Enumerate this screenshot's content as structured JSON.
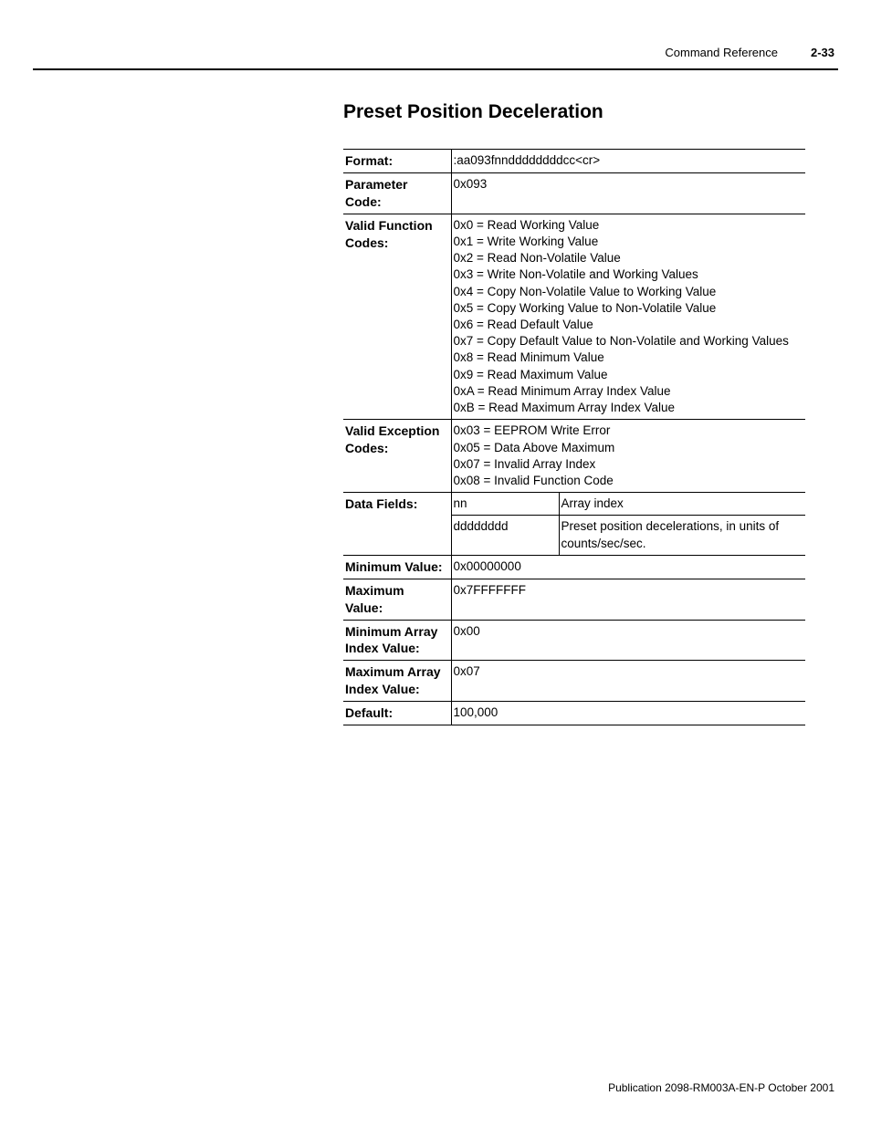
{
  "header": {
    "section": "Command Reference",
    "pagenum": "2-33"
  },
  "title": "Preset Position Deceleration",
  "rows": {
    "format": {
      "label": "Format:",
      "value": ":aa093fnnddddddddcc<cr>"
    },
    "param_code": {
      "label": "Parameter Code:",
      "value": "0x093"
    },
    "func_codes": {
      "label": "Valid Function Codes:",
      "lines": [
        "0x0 = Read Working Value",
        "0x1 = Write Working Value",
        "0x2 = Read Non-Volatile Value",
        "0x3 = Write Non-Volatile and Working Values",
        "0x4 = Copy Non-Volatile Value to Working Value",
        "0x5 = Copy Working Value to Non-Volatile Value",
        "0x6 = Read Default Value",
        "0x7 = Copy Default Value to Non-Volatile and Working Values",
        "0x8 = Read Minimum Value",
        "0x9 = Read Maximum Value",
        "0xA = Read Minimum Array Index Value",
        "0xB = Read Maximum Array Index Value"
      ]
    },
    "exc_codes": {
      "label": "Valid Exception Codes:",
      "lines": [
        "0x03 = EEPROM Write Error",
        "0x05 = Data Above Maximum",
        "0x07 = Invalid Array Index",
        "0x08 = Invalid Function Code"
      ]
    },
    "data_fields": {
      "label": "Data Fields:",
      "r1c1": "nn",
      "r1c2": "Array index",
      "r2c1": "dddddddd",
      "r2c2": "Preset position decelerations, in units of counts/sec/sec."
    },
    "min_value": {
      "label": "Minimum Value:",
      "value": "0x00000000"
    },
    "max_value": {
      "label": "Maximum Value:",
      "value": "0x7FFFFFFF"
    },
    "min_array": {
      "label": "Minimum Array Index Value:",
      "value": "0x00"
    },
    "max_array": {
      "label": "Maximum Array Index Value:",
      "value": "0x07"
    },
    "default": {
      "label": "Default:",
      "value": "100,000"
    }
  },
  "footer": "Publication 2098-RM003A-EN-P October 2001"
}
